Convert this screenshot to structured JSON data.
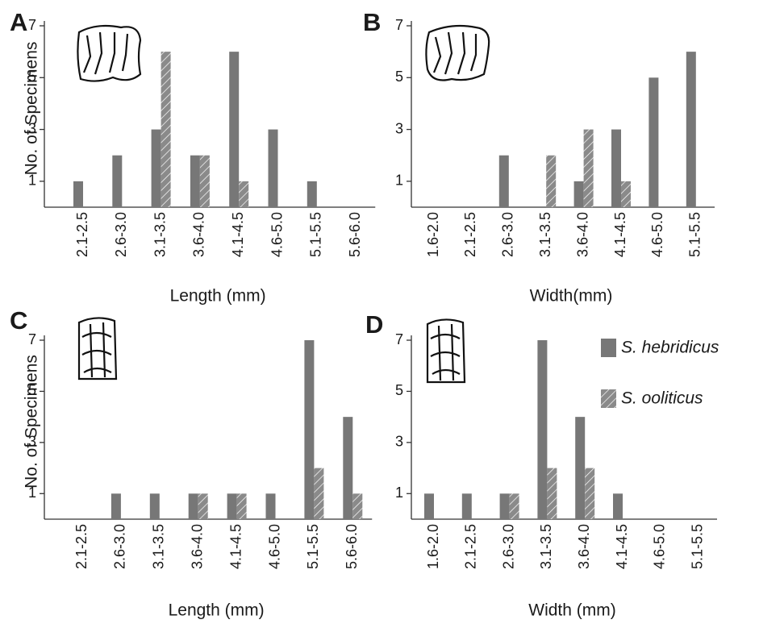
{
  "chart_data": [
    {
      "type": "bar",
      "panel": "A",
      "ylabel": "No. of Specimens",
      "xlabel": "Length (mm)",
      "categories": [
        "2.1-2.5",
        "2.6-3.0",
        "3.1-3.5",
        "3.6-4.0",
        "4.1-4.5",
        "4.6-5.0",
        "5.1-5.5",
        "5.6-6.0"
      ],
      "series": [
        {
          "color": "#777777",
          "values": [
            1,
            2,
            3,
            2,
            6,
            3,
            1,
            0
          ]
        },
        {
          "color": "#8a8a8a",
          "hatch": true,
          "values": [
            0,
            0,
            6,
            2,
            1,
            0,
            0,
            0
          ]
        }
      ],
      "ylim": [
        0,
        7
      ],
      "yticks": [
        1,
        3,
        5,
        7
      ]
    },
    {
      "type": "bar",
      "panel": "B",
      "xlabel": "Width(mm)",
      "categories": [
        "1.6-2.0",
        "2.1-2.5",
        "2.6-3.0",
        "3.1-3.5",
        "3.6-4.0",
        "4.1-4.5",
        "4.6-5.0",
        "5.1-5.5"
      ],
      "series": [
        {
          "color": "#777777",
          "values": [
            0,
            0,
            2,
            0,
            1,
            3,
            5,
            6
          ]
        },
        {
          "color": "#8a8a8a",
          "hatch": true,
          "values": [
            0,
            0,
            0,
            2,
            3,
            1,
            0,
            0
          ]
        }
      ],
      "ylim": [
        0,
        7
      ],
      "yticks": [
        1,
        3,
        5,
        7
      ]
    },
    {
      "type": "bar",
      "panel": "C",
      "ylabel": "No. of Specimens",
      "xlabel": "Length (mm)",
      "categories": [
        "2.1-2.5",
        "2.6-3.0",
        "3.1-3.5",
        "3.6-4.0",
        "4.1-4.5",
        "4.6-5.0",
        "5.1-5.5",
        "5.6-6.0"
      ],
      "series": [
        {
          "color": "#777777",
          "values": [
            0,
            1,
            1,
            1,
            1,
            1,
            7,
            4
          ]
        },
        {
          "color": "#8a8a8a",
          "hatch": true,
          "values": [
            0,
            0,
            0,
            1,
            1,
            0,
            2,
            1
          ]
        }
      ],
      "ylim": [
        0,
        7
      ],
      "yticks": [
        1,
        3,
        5,
        7
      ]
    },
    {
      "type": "bar",
      "panel": "D",
      "xlabel": "Width (mm)",
      "legend": "right",
      "categories": [
        "1.6-2.0",
        "2.1-2.5",
        "2.6-3.0",
        "3.1-3.5",
        "3.6-4.0",
        "4.1-4.5",
        "4.6-5.0",
        "5.1-5.5"
      ],
      "series": [
        {
          "name": "S. hebridicus",
          "color": "#777777",
          "values": [
            1,
            1,
            1,
            7,
            4,
            1,
            0,
            0
          ]
        },
        {
          "name": "S. ooliticus",
          "color": "#8a8a8a",
          "hatch": true,
          "values": [
            0,
            0,
            1,
            2,
            2,
            0,
            0,
            0
          ]
        }
      ],
      "ylim": [
        0,
        7
      ],
      "yticks": [
        1,
        3,
        5,
        7
      ]
    }
  ]
}
